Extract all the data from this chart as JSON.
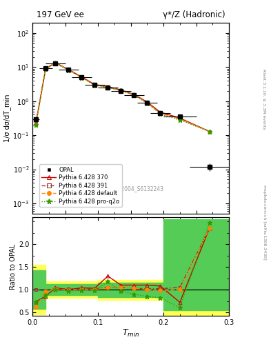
{
  "title_left": "197 GeV ee",
  "title_right": "γ*/Z (Hadronic)",
  "ylabel_main": "1/σ dσ/dT_min",
  "ylabel_ratio": "Ratio to OPAL",
  "xlabel": "T_min",
  "right_label_top": "Rivet 3.1.10, ≥ 3.3M events",
  "right_label_bottom": "mcplots.cern.ch [arXiv:1306.3436]",
  "watermark": "OPAL_2004_S6132243",
  "x_data": [
    0.005,
    0.02,
    0.035,
    0.055,
    0.075,
    0.095,
    0.115,
    0.135,
    0.155,
    0.175,
    0.195,
    0.225,
    0.27
  ],
  "opal_y": [
    0.3,
    9.5,
    13.0,
    8.5,
    5.0,
    3.0,
    2.5,
    2.0,
    1.5,
    0.9,
    0.45,
    0.35,
    0.012
  ],
  "opal_xerr": [
    0.005,
    0.01,
    0.015,
    0.015,
    0.015,
    0.015,
    0.015,
    0.015,
    0.015,
    0.015,
    0.015,
    0.025,
    0.03
  ],
  "opal_yerr_lo": [
    0.05,
    0.5,
    0.5,
    0.3,
    0.2,
    0.1,
    0.1,
    0.1,
    0.08,
    0.05,
    0.03,
    0.02,
    0.003
  ],
  "opal_yerr_hi": [
    0.05,
    0.5,
    0.5,
    0.3,
    0.2,
    0.1,
    0.1,
    0.1,
    0.08,
    0.05,
    0.03,
    0.02,
    0.003
  ],
  "py370_y": [
    0.22,
    9.0,
    13.5,
    8.5,
    5.2,
    3.1,
    2.7,
    2.15,
    1.6,
    0.95,
    0.48,
    0.32,
    0.13
  ],
  "py391_y": [
    0.22,
    9.2,
    13.4,
    8.6,
    5.1,
    3.05,
    2.6,
    2.1,
    1.55,
    0.92,
    0.46,
    0.31,
    0.13
  ],
  "pydef_y": [
    0.2,
    9.0,
    13.3,
    8.4,
    5.0,
    3.0,
    2.6,
    2.1,
    1.55,
    0.9,
    0.44,
    0.3,
    0.13
  ],
  "pyq2o_y": [
    0.2,
    8.8,
    13.0,
    8.2,
    4.9,
    2.95,
    2.55,
    2.05,
    1.5,
    0.88,
    0.42,
    0.28,
    0.13
  ],
  "py370_ratio": [
    0.73,
    0.85,
    1.04,
    1.0,
    1.04,
    1.03,
    1.3,
    1.1,
    1.1,
    1.1,
    1.08,
    0.72,
    2.35
  ],
  "py391_ratio": [
    1.0,
    0.97,
    1.03,
    1.01,
    1.02,
    1.02,
    1.05,
    1.05,
    1.03,
    1.02,
    1.02,
    1.05,
    2.35
  ],
  "pydef_ratio": [
    0.62,
    0.95,
    1.02,
    0.99,
    1.0,
    1.0,
    1.04,
    1.05,
    1.03,
    1.0,
    0.98,
    1.0,
    2.35
  ],
  "pyq2o_ratio": [
    0.73,
    0.88,
    1.0,
    0.97,
    0.98,
    0.98,
    1.18,
    0.97,
    0.9,
    0.85,
    0.82,
    0.6,
    2.48
  ],
  "color_py370": "#cc0000",
  "color_py391": "#993333",
  "color_pydef": "#ff8800",
  "color_pyq2o": "#339900",
  "color_opal": "#000000",
  "color_yellow_band": "#ffff55",
  "color_green_band": "#55cc55",
  "ylim_main": [
    0.0005,
    200
  ],
  "ylim_ratio": [
    0.42,
    2.6
  ],
  "xlim": [
    0.0,
    0.3
  ]
}
